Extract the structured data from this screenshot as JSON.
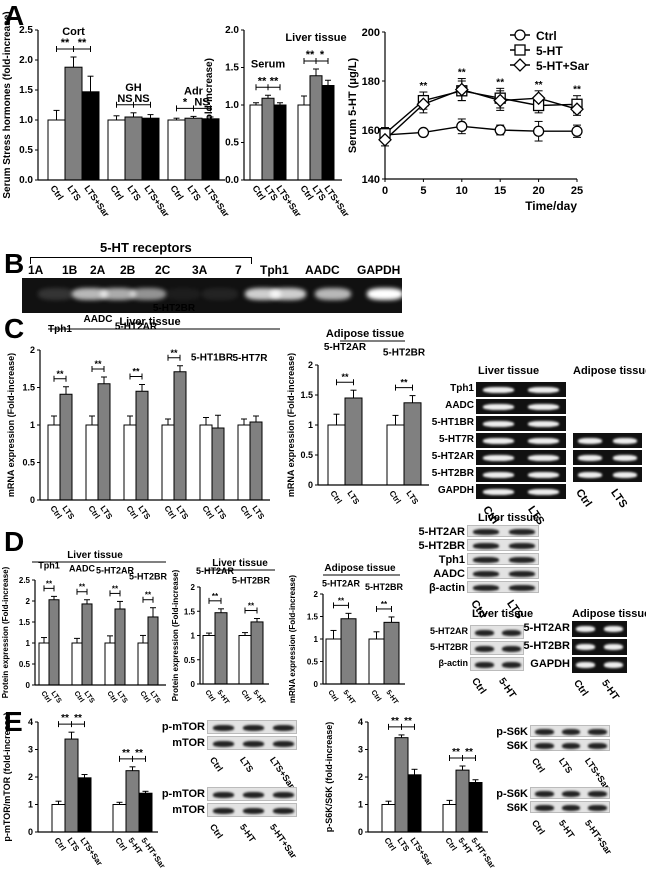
{
  "panels": {
    "A": "A",
    "B": "B",
    "C": "C",
    "D": "D",
    "E": "E"
  },
  "chart_data": [
    {
      "id": "A1",
      "type": "bar",
      "title": "",
      "ylabel": "Serum Stress hormones (fold-increase)",
      "ylim": [
        0,
        2.5
      ],
      "yticks": [
        "0.0",
        "0.5",
        "1.0",
        "1.5",
        "2.0",
        "2.5"
      ],
      "groups": [
        {
          "label": "Cort",
          "sig": [
            "**",
            "**"
          ],
          "categories": [
            "Ctrl",
            "LTS",
            "LTS+Sar"
          ],
          "values": [
            1.0,
            1.88,
            1.47
          ],
          "errors": [
            0.16,
            0.17,
            0.26
          ]
        },
        {
          "label": "GH",
          "sig": [
            "NS",
            "NS"
          ],
          "categories": [
            "Ctrl",
            "LTS",
            "LTS+Sar"
          ],
          "values": [
            1.0,
            1.05,
            1.03
          ],
          "errors": [
            0.07,
            0.07,
            0.06
          ]
        },
        {
          "label": "Adr",
          "sig": [
            "*",
            "NS"
          ],
          "categories": [
            "Ctrl",
            "LTS",
            "LTS+Sar"
          ],
          "values": [
            1.0,
            1.03,
            1.02
          ],
          "errors": [
            0.03,
            0.03,
            0.03
          ]
        }
      ]
    },
    {
      "id": "A2",
      "type": "bar",
      "ylabel": "5-HT (fold-increase)",
      "ylim": [
        0,
        2.0
      ],
      "yticks": [
        "0.0",
        "0.5",
        "1.0",
        "1.5",
        "2.0"
      ],
      "groups": [
        {
          "label": "Serum",
          "sig": [
            "**",
            "**"
          ],
          "categories": [
            "Ctrl",
            "LTS",
            "LTS+Sar"
          ],
          "values": [
            1.0,
            1.09,
            1.0
          ],
          "errors": [
            0.03,
            0.04,
            0.03
          ]
        },
        {
          "label": "Liver tissue",
          "sig": [
            "**",
            "*"
          ],
          "categories": [
            "Ctrl",
            "LTS",
            "LTS+Sar"
          ],
          "values": [
            1.0,
            1.39,
            1.26
          ],
          "errors": [
            0.12,
            0.09,
            0.07
          ]
        }
      ]
    },
    {
      "id": "A3",
      "type": "line",
      "xlabel": "Time/day",
      "ylabel": "Serum 5-HT (μg/L)",
      "x": [
        0,
        5,
        10,
        15,
        20,
        25
      ],
      "ylim": [
        140,
        200
      ],
      "yticks": [
        "140",
        "160",
        "180",
        "200"
      ],
      "xticks": [
        "0",
        "5",
        "10",
        "15",
        "20",
        "25"
      ],
      "sig": [
        "",
        "**",
        "**",
        "**",
        "**",
        "**"
      ],
      "series": [
        {
          "name": "Ctrl",
          "marker": "circle",
          "values": [
            158,
            159,
            161.5,
            160,
            159.5,
            159.5
          ],
          "errors": [
            2,
            1,
            3,
            2,
            4,
            2.5
          ]
        },
        {
          "name": "5-HT",
          "marker": "square",
          "values": [
            158.5,
            172,
            176,
            173,
            170,
            170.5
          ],
          "errors": [
            2.5,
            3.5,
            4,
            4,
            3,
            3.5
          ]
        },
        {
          "name": "5-HT+Sar",
          "marker": "diamond",
          "values": [
            156,
            170.5,
            176.5,
            172,
            173,
            168.5
          ],
          "errors": [
            2.5,
            3.5,
            4.5,
            4,
            3,
            2.5
          ]
        }
      ]
    },
    {
      "id": "C1",
      "type": "bar",
      "header": "Liver tissue",
      "ylabel": "mRNA expression (Fold-increase)",
      "ylim": [
        0,
        2
      ],
      "yticks": [
        "0",
        "0.5",
        "1",
        "1.5",
        "2"
      ],
      "groups": [
        {
          "label": "Tph1",
          "sig": "**",
          "categories": [
            "Ctrl",
            "LTS"
          ],
          "values": [
            1.0,
            1.41
          ],
          "errors": [
            0.12,
            0.1
          ]
        },
        {
          "label": "AADC",
          "sig": "**",
          "categories": [
            "Ctrl",
            "LTS"
          ],
          "values": [
            1.0,
            1.55
          ],
          "errors": [
            0.12,
            0.09
          ]
        },
        {
          "label": "5-HT2AR",
          "sig": "**",
          "categories": [
            "Ctrl",
            "LTS"
          ],
          "values": [
            1.0,
            1.45
          ],
          "errors": [
            0.12,
            0.09
          ]
        },
        {
          "label": "5-HT2BR",
          "sig": "**",
          "categories": [
            "Ctrl",
            "LTS"
          ],
          "values": [
            1.0,
            1.71
          ],
          "errors": [
            0.08,
            0.08
          ]
        },
        {
          "label": "5-HT1BR",
          "sig": "",
          "categories": [
            "Ctrl",
            "LTS"
          ],
          "values": [
            1.0,
            0.96
          ],
          "errors": [
            0.1,
            0.17
          ]
        },
        {
          "label": "5-HT7R",
          "sig": "",
          "categories": [
            "Ctrl",
            "LTS"
          ],
          "values": [
            1.0,
            1.04
          ],
          "errors": [
            0.08,
            0.08
          ]
        }
      ]
    },
    {
      "id": "C2",
      "type": "bar",
      "header": "Adipose tissue",
      "ylabel": "mRNA expression (Fold-increase)",
      "ylim": [
        0,
        2
      ],
      "yticks": [
        "0",
        "0.5",
        "1",
        "1.5",
        "2"
      ],
      "groups": [
        {
          "label": "5-HT2AR",
          "sig": "**",
          "categories": [
            "Ctrl",
            "LTS"
          ],
          "values": [
            1.0,
            1.45
          ],
          "errors": [
            0.18,
            0.13
          ]
        },
        {
          "label": "5-HT2BR",
          "sig": "**",
          "categories": [
            "Ctrl",
            "LTS"
          ],
          "values": [
            1.0,
            1.37
          ],
          "errors": [
            0.16,
            0.12
          ]
        }
      ]
    },
    {
      "id": "D1",
      "type": "bar",
      "header": "Liver tissue",
      "ylabel": "Protein expression (Fold-increase)",
      "ylim": [
        0,
        2.5
      ],
      "yticks": [
        "0",
        "0.5",
        "1",
        "1.5",
        "2",
        "2.5"
      ],
      "groups": [
        {
          "label": "Tph1",
          "sig": "**",
          "categories": [
            "Ctrl",
            "LTS"
          ],
          "values": [
            1.0,
            2.03
          ],
          "errors": [
            0.13,
            0.08
          ]
        },
        {
          "label": "AADC",
          "sig": "**",
          "categories": [
            "Ctrl",
            "LTS"
          ],
          "values": [
            1.0,
            1.93
          ],
          "errors": [
            0.11,
            0.1
          ]
        },
        {
          "label": "5-HT2AR",
          "sig": "**",
          "categories": [
            "Ctrl",
            "LTS"
          ],
          "values": [
            1.0,
            1.81
          ],
          "errors": [
            0.17,
            0.18
          ]
        },
        {
          "label": "5-HT2BR",
          "sig": "**",
          "categories": [
            "Ctrl",
            "LTS"
          ],
          "values": [
            1.0,
            1.62
          ],
          "errors": [
            0.18,
            0.22
          ]
        }
      ]
    },
    {
      "id": "D2",
      "type": "bar",
      "header": "Liver tissue",
      "ylabel": "Protein expression (Fold-increase)",
      "ylim": [
        0,
        2
      ],
      "yticks": [
        "0",
        "0.5",
        "1",
        "1.5",
        "2"
      ],
      "groups": [
        {
          "label": "5-HT2AR",
          "sig": "**",
          "categories": [
            "Ctrl",
            "5-HT"
          ],
          "values": [
            1.0,
            1.47
          ],
          "errors": [
            0.05,
            0.08
          ]
        },
        {
          "label": "5-HT2BR",
          "sig": "**",
          "categories": [
            "Ctrl",
            "5-HT"
          ],
          "values": [
            1.0,
            1.28
          ],
          "errors": [
            0.06,
            0.07
          ]
        }
      ]
    },
    {
      "id": "D3",
      "type": "bar",
      "header": "Adipose tissue",
      "ylabel": "mRNA expression (Fold-increase)",
      "ylim": [
        0,
        2
      ],
      "yticks": [
        "0",
        "0.5",
        "1",
        "1.5",
        "2"
      ],
      "groups": [
        {
          "label": "5-HT2AR",
          "sig": "**",
          "categories": [
            "Ctrl",
            "5-HT"
          ],
          "values": [
            1.0,
            1.45
          ],
          "errors": [
            0.19,
            0.12
          ]
        },
        {
          "label": "5-HT2BR",
          "sig": "**",
          "categories": [
            "Ctrl",
            "5-HT"
          ],
          "values": [
            1.0,
            1.37
          ],
          "errors": [
            0.16,
            0.12
          ]
        }
      ]
    },
    {
      "id": "E1",
      "type": "bar",
      "ylabel": "p-mTOR/mTOR (fold-increase)",
      "ylim": [
        0,
        4
      ],
      "yticks": [
        "0",
        "1",
        "2",
        "3",
        "4"
      ],
      "groups": [
        {
          "label": "",
          "sig": [
            "**",
            "**"
          ],
          "categories": [
            "Ctrl",
            "LTS",
            "LTS+Sar"
          ],
          "values": [
            1.0,
            3.38,
            1.97
          ],
          "errors": [
            0.12,
            0.25,
            0.12
          ]
        },
        {
          "label": "",
          "sig": [
            "**",
            "**"
          ],
          "categories": [
            "Ctrl",
            "5-HT",
            "5-HT+Sar"
          ],
          "values": [
            1.0,
            2.23,
            1.41
          ],
          "errors": [
            0.08,
            0.14,
            0.07
          ]
        }
      ]
    },
    {
      "id": "E2",
      "type": "bar",
      "ylabel": "p-S6K/S6K (fold-increase)",
      "ylim": [
        0,
        4
      ],
      "yticks": [
        "0",
        "1",
        "2",
        "3",
        "4"
      ],
      "groups": [
        {
          "label": "",
          "sig": [
            "**",
            "**"
          ],
          "categories": [
            "Ctrl",
            "LTS",
            "LTS+Sar"
          ],
          "values": [
            1.0,
            3.43,
            2.08
          ],
          "errors": [
            0.12,
            0.1,
            0.2
          ]
        },
        {
          "label": "",
          "sig": [
            "**",
            "**"
          ],
          "categories": [
            "Ctrl",
            "5-HT",
            "5-HT+Sar"
          ],
          "values": [
            1.0,
            2.25,
            1.8
          ],
          "errors": [
            0.15,
            0.15,
            0.1
          ]
        }
      ]
    }
  ],
  "gel_B": {
    "header": "5-HT receptors",
    "lanes": [
      "1A",
      "1B",
      "2A",
      "2B",
      "2C",
      "3A",
      "7",
      "Tph1",
      "AADC",
      "GAPDH"
    ],
    "intensity": [
      0.15,
      0.7,
      0.65,
      0.55,
      0.05,
      0.08,
      0.8,
      0.8,
      0.7,
      1.0
    ]
  },
  "blots": {
    "C_liver": {
      "title": "Liver tissue",
      "rows": [
        "Tph1",
        "AADC",
        "5-HT1BR",
        "5-HT7R",
        "5-HT2AR",
        "5-HT2BR",
        "GAPDH"
      ],
      "lanes": [
        "Ctrl",
        "LTS"
      ]
    },
    "C_adipose": {
      "title": "Adipose tissue",
      "rows": [
        "5-HT2AR",
        "5-HT2BR",
        "GAPDH"
      ],
      "lanes": [
        "Ctrl",
        "LTS"
      ]
    },
    "D_liver_lts": {
      "title": "Liver tissue",
      "rows": [
        "5-HT2AR",
        "5-HT2BR",
        "Tph1",
        "AADC",
        "β-actin"
      ],
      "lanes": [
        "Ctrl",
        "LTS"
      ]
    },
    "D_liver_5ht": {
      "title": "Liver tissue",
      "rows": [
        "5-HT2AR",
        "5-HT2BR",
        "β-actin"
      ],
      "lanes": [
        "Ctrl",
        "5-HT"
      ]
    },
    "D_adipose_5ht": {
      "title": "Adipose tissue",
      "rows": [
        "5-HT2AR",
        "5-HT2BR",
        "GAPDH"
      ],
      "lanes": [
        "Ctrl",
        "5-HT"
      ]
    },
    "E_mtor_lts": {
      "rows": [
        "p-mTOR",
        "mTOR"
      ],
      "lanes": [
        "Ctrl",
        "LTS",
        "LTS+Sar"
      ]
    },
    "E_mtor_5ht": {
      "rows": [
        "p-mTOR",
        "mTOR"
      ],
      "lanes": [
        "Ctrl",
        "5-HT",
        "5-HT+Sar"
      ]
    },
    "E_s6k_lts": {
      "rows": [
        "p-S6K",
        "S6K"
      ],
      "lanes": [
        "Ctrl",
        "LTS",
        "LTS+Sar"
      ]
    },
    "E_s6k_5ht": {
      "rows": [
        "p-S6K",
        "S6K"
      ],
      "lanes": [
        "Ctrl",
        "5-HT",
        "5-HT+Sar"
      ]
    }
  },
  "colors": {
    "ctrl": "#ffffff",
    "treated": "#808080",
    "sar": "#000000"
  }
}
